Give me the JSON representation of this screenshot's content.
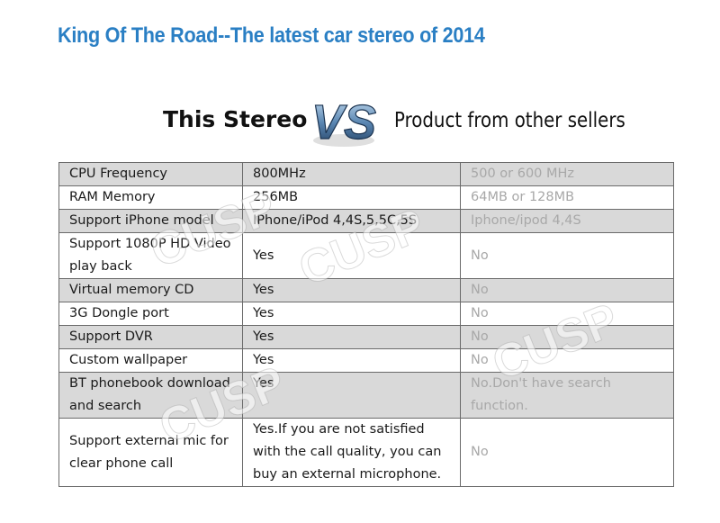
{
  "header": {
    "title": "King Of The Road--The latest car stereo of 2014"
  },
  "comparison": {
    "left_label": "This Stereo",
    "vs_text": "VS",
    "right_label": "Product from other sellers"
  },
  "watermark": {
    "text": "CUSP"
  },
  "table": {
    "rows": [
      {
        "feature": "CPU Frequency",
        "this": "800MHz",
        "other": "500 or 600 MHz"
      },
      {
        "feature": "RAM Memory",
        "this": "256MB",
        "other": "64MB or 128MB"
      },
      {
        "feature": "Support iPhone model",
        "this": "IPhone/iPod 4,4S,5,5C,5S",
        "other": "Iphone/ipod 4,4S"
      },
      {
        "feature": "Support 1080P HD Video play back",
        "this": "Yes",
        "other": "No"
      },
      {
        "feature": "Virtual memory CD",
        "this": "Yes",
        "other": "No"
      },
      {
        "feature": "3G Dongle port",
        "this": "Yes",
        "other": "No"
      },
      {
        "feature": "Support DVR",
        "this": "Yes",
        "other": "No"
      },
      {
        "feature": "Custom wallpaper",
        "this": "Yes",
        "other": "No"
      },
      {
        "feature": "BT phonebook download and search",
        "this": "Yes",
        "other": "No.Don't have search function."
      },
      {
        "feature": "Support external mic for clear phone call",
        "this": "Yes.If you are not satisfied with the call quality, you can buy an external microphone.",
        "other": "No"
      }
    ]
  },
  "colors": {
    "title_blue": "#2a7fc4",
    "shaded_row": "#d9d9d9",
    "muted_text": "#a8a8a8"
  }
}
